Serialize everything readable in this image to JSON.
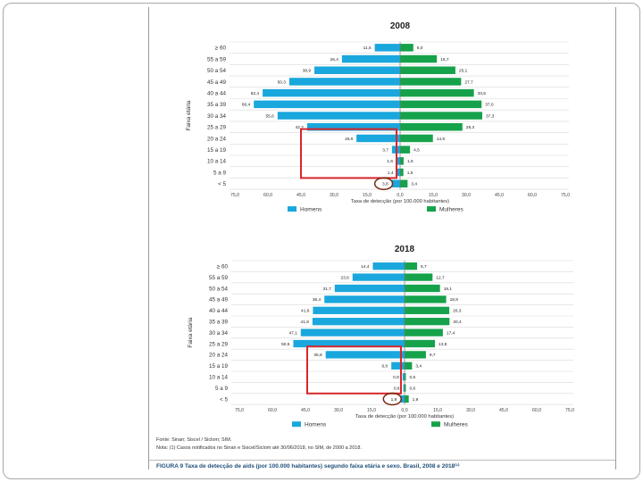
{
  "colors": {
    "men": "#1aa7dd",
    "women": "#16a24b",
    "highlight_box": "#d7262c",
    "highlight_circle": "#7a2a10",
    "grid": "#d9d9d9"
  },
  "chart_data": [
    {
      "type": "bar",
      "subtype": "population-pyramid",
      "title": "2008",
      "ylabel": "Faixa etária",
      "xlabel": "Taxa de detecção (por 100.000 habitantes)",
      "categories": [
        "≥ 60",
        "55 a 59",
        "50 a 54",
        "45 a 49",
        "40 a 44",
        "35 a 39",
        "30 a 34",
        "25 a 29",
        "20 a 24",
        "15 a 19",
        "10 a 14",
        "5 a 9",
        "< 5"
      ],
      "series": [
        {
          "name": "Homens",
          "values": [
            11.5,
            26.4,
            38.9,
            50.3,
            62.4,
            66.4,
            55.6,
            42.2,
            19.8,
            3.7,
            1.6,
            1.4,
            3.8
          ]
        },
        {
          "name": "Mulheres",
          "values": [
            6.0,
            16.7,
            25.1,
            27.7,
            33.5,
            37.0,
            37.3,
            28.3,
            14.9,
            4.5,
            1.6,
            1.5,
            3.4
          ]
        }
      ],
      "value_labels_left": [
        "11,5",
        "26,4",
        "38,9",
        "50,3",
        "62,4",
        "66,4",
        "55,6",
        "42,2",
        "19,8",
        "3,7",
        "1,6",
        "1,4",
        "3,8"
      ],
      "value_labels_right": [
        "6,0",
        "16,7",
        "25,1",
        "27,7",
        "33,5",
        "37,0",
        "37,3",
        "28,3",
        "14,9",
        "4,5",
        "1,6",
        "1,5",
        "3,4"
      ],
      "xlim": [
        -75,
        75
      ],
      "tick_labels": [
        "75,0",
        "60,0",
        "45,0",
        "30,0",
        "15,0",
        "0,0",
        "15,0",
        "30,0",
        "45,0",
        "60,0",
        "75,0"
      ],
      "legend_position": "bottom",
      "grid": true
    },
    {
      "type": "bar",
      "subtype": "population-pyramid",
      "title": "2018",
      "ylabel": "Faixa etária",
      "xlabel": "Taxa de detecção (por 100.000 habitantes)",
      "categories": [
        "≥ 60",
        "55 a 59",
        "50 a 54",
        "45 a 49",
        "40 a 44",
        "35 a 39",
        "30 a 34",
        "25 a 29",
        "20 a 24",
        "15 a 19",
        "10 a 14",
        "5 a 9",
        "< 5"
      ],
      "series": [
        {
          "name": "Homens",
          "values": [
            14.4,
            23.6,
            31.7,
            36.4,
            41.6,
            41.8,
            47.1,
            50.5,
            35.8,
            6.0,
            0.9,
            0.6,
            1.9
          ]
        },
        {
          "name": "Mulheres",
          "values": [
            5.7,
            12.7,
            16.1,
            18.9,
            20.3,
            20.4,
            17.4,
            13.8,
            9.7,
            3.4,
            0.6,
            0.6,
            1.9
          ]
        }
      ],
      "value_labels_left": [
        "14,4",
        "23,6",
        "31,7",
        "36,4",
        "41,6",
        "41,8",
        "47,1",
        "50,5",
        "35,8",
        "6,0",
        "0,9",
        "0,6",
        "1,9"
      ],
      "value_labels_right": [
        "5,7",
        "12,7",
        "16,1",
        "18,9",
        "20,3",
        "20,4",
        "17,4",
        "13,8",
        "9,7",
        "3,4",
        "0,6",
        "0,6",
        "1,9"
      ],
      "xlim": [
        -75,
        75
      ],
      "tick_labels": [
        "75,0",
        "60,0",
        "45,0",
        "30,0",
        "15,0",
        "0,0",
        "15,0",
        "30,0",
        "45,0",
        "60,0",
        "75,0"
      ],
      "legend_position": "bottom",
      "grid": true
    }
  ],
  "footer": {
    "source": "Fonte: Sinan; Siscel / Siclom; SIM.",
    "note": "Nota: (1) Casos notificados no Sinan e Siscel/Siclom até 30/06/2018, no SIM, de 2000 a 2018.",
    "caption": "FIGURA 9  Taxa de detecção de aids (por 100.000 habitantes) segundo faixa etária e sexo. Brasil, 2008 e 2018⁽¹⁾"
  }
}
